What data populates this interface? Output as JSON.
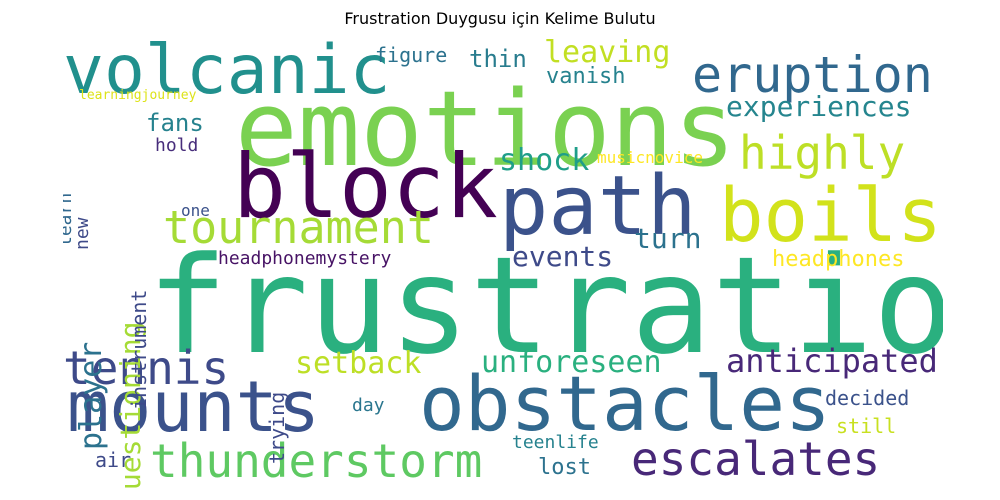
{
  "title": "Frustration Duygusu için Kelime Bulutu",
  "words": [
    {
      "text": "frustration",
      "color": "#2ab07f"
    },
    {
      "text": "emotions",
      "color": "#7ad151"
    },
    {
      "text": "block",
      "color": "#440154"
    },
    {
      "text": "path",
      "color": "#3b528b"
    },
    {
      "text": "boils",
      "color": "#d2e21b"
    },
    {
      "text": "obstacles",
      "color": "#31688e"
    },
    {
      "text": "volcanic",
      "color": "#21908d"
    },
    {
      "text": "mounts",
      "color": "#3b528b"
    },
    {
      "text": "eruption",
      "color": "#31688e"
    },
    {
      "text": "thunderstorm",
      "color": "#5ec962"
    },
    {
      "text": "escalates",
      "color": "#482878"
    },
    {
      "text": "tournament",
      "color": "#a5db36"
    },
    {
      "text": "highly",
      "color": "#bddf26"
    },
    {
      "text": "tennis",
      "color": "#3e4a89"
    },
    {
      "text": "anticipated",
      "color": "#482878"
    },
    {
      "text": "experiences",
      "color": "#25858e"
    },
    {
      "text": "questioning",
      "color": "#a5db36"
    },
    {
      "text": "unforeseen",
      "color": "#2ab07f"
    },
    {
      "text": "setback",
      "color": "#bddf26"
    },
    {
      "text": "leaving",
      "color": "#c2df23"
    },
    {
      "text": "shock",
      "color": "#1f9e89"
    },
    {
      "text": "events",
      "color": "#3e4a89"
    },
    {
      "text": "headphones",
      "color": "#fde725"
    },
    {
      "text": "player",
      "color": "#2c728e"
    },
    {
      "text": "turn",
      "color": "#2c728e"
    },
    {
      "text": "fans",
      "color": "#26828e"
    },
    {
      "text": "thin",
      "color": "#287c8e"
    },
    {
      "text": "vanish",
      "color": "#26828e"
    },
    {
      "text": "figure",
      "color": "#2c728e"
    },
    {
      "text": "headphonemystery",
      "color": "#471365"
    },
    {
      "text": "instrument",
      "color": "#3e4a89"
    },
    {
      "text": "decided",
      "color": "#3b528b"
    },
    {
      "text": "lost",
      "color": "#2c728e"
    },
    {
      "text": "air",
      "color": "#3e4a89"
    },
    {
      "text": "teenlife",
      "color": "#26828e"
    },
    {
      "text": "still",
      "color": "#c8e020"
    },
    {
      "text": "day",
      "color": "#2a768e"
    },
    {
      "text": "trying",
      "color": "#3e4a89"
    },
    {
      "text": "musicnovice",
      "color": "#fde725"
    },
    {
      "text": "hold",
      "color": "#472d7b"
    },
    {
      "text": "one",
      "color": "#3b528b"
    },
    {
      "text": "new",
      "color": "#3e4a89"
    },
    {
      "text": "learn",
      "color": "#31688e"
    },
    {
      "text": "learningjourney",
      "color": "#dde318"
    }
  ]
}
